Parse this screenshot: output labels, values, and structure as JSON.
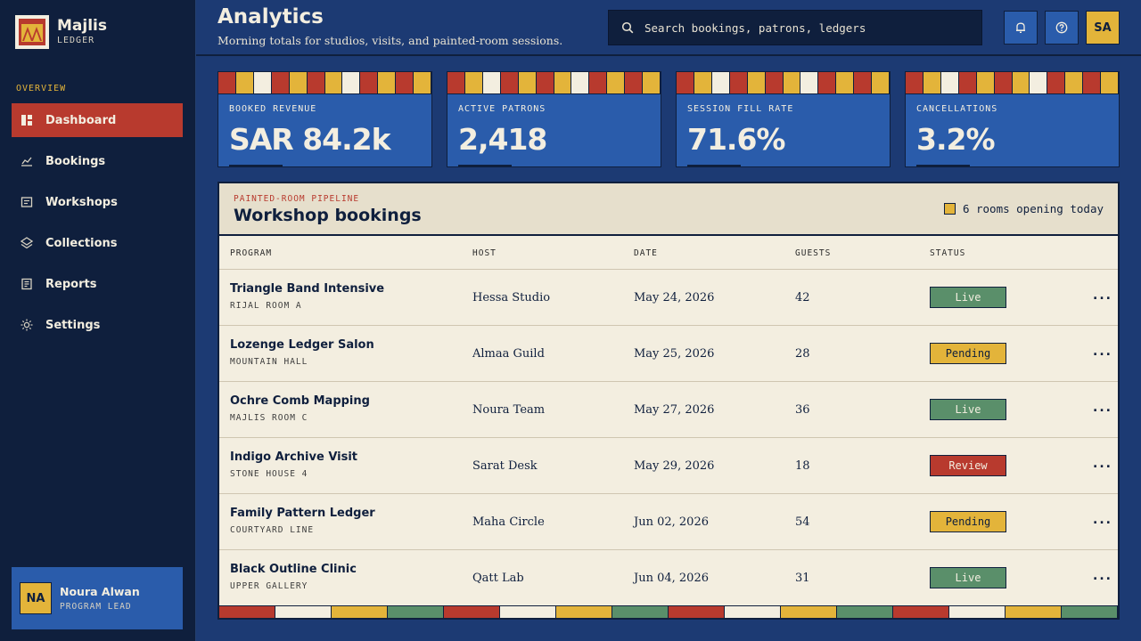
{
  "brand": {
    "name": "Majlis",
    "sub": "LEDGER"
  },
  "sidebar": {
    "section": "OVERVIEW",
    "items": [
      {
        "label": "Dashboard",
        "icon": "dashboard-icon",
        "active": true
      },
      {
        "label": "Bookings",
        "icon": "chart-line-icon",
        "active": false
      },
      {
        "label": "Workshops",
        "icon": "workshop-icon",
        "active": false
      },
      {
        "label": "Collections",
        "icon": "layers-icon",
        "active": false
      },
      {
        "label": "Reports",
        "icon": "report-icon",
        "active": false
      },
      {
        "label": "Settings",
        "icon": "sun-gear-icon",
        "active": false
      }
    ]
  },
  "user": {
    "initials": "NA",
    "name": "Noura Alwan",
    "role": "PROGRAM LEAD"
  },
  "header": {
    "title": "Analytics",
    "subtitle": "Morning totals for studios, visits, and painted-room sessions.",
    "search_placeholder": "Search bookings, patrons, ledgers",
    "avatar_initials": "SA"
  },
  "kpis": [
    {
      "label": "BOOKED REVENUE",
      "value": "SAR 84.2k"
    },
    {
      "label": "ACTIVE PATRONS",
      "value": "2,418"
    },
    {
      "label": "SESSION FILL RATE",
      "value": "71.6%"
    },
    {
      "label": "CANCELLATIONS",
      "value": "3.2%"
    }
  ],
  "panel": {
    "eyebrow": "PAINTED-ROOM PIPELINE",
    "title": "Workshop bookings",
    "legend": "6 rooms opening today",
    "columns": {
      "program": "PROGRAM",
      "host": "HOST",
      "date": "DATE",
      "guests": "GUESTS",
      "status": "STATUS"
    },
    "rows": [
      {
        "program": "Triangle Band Intensive",
        "room": "RIJAL ROOM A",
        "host": "Hessa Studio",
        "date": "May 24, 2026",
        "guests": "42",
        "status": "Live"
      },
      {
        "program": "Lozenge Ledger Salon",
        "room": "MOUNTAIN HALL",
        "host": "Almaa Guild",
        "date": "May 25, 2026",
        "guests": "28",
        "status": "Pending"
      },
      {
        "program": "Ochre Comb Mapping",
        "room": "MAJLIS ROOM C",
        "host": "Noura Team",
        "date": "May 27, 2026",
        "guests": "36",
        "status": "Live"
      },
      {
        "program": "Indigo Archive Visit",
        "room": "STONE HOUSE 4",
        "host": "Sarat Desk",
        "date": "May 29, 2026",
        "guests": "18",
        "status": "Review"
      },
      {
        "program": "Family Pattern Ledger",
        "room": "COURTYARD LINE",
        "host": "Maha Circle",
        "date": "Jun 02, 2026",
        "guests": "54",
        "status": "Pending"
      },
      {
        "program": "Black Outline Clinic",
        "room": "UPPER GALLERY",
        "host": "Qatt Lab",
        "date": "Jun 04, 2026",
        "guests": "31",
        "status": "Live"
      }
    ],
    "more_label": "..."
  },
  "colors": {
    "red": "#b83a2e",
    "gold": "#e3b43a",
    "cream": "#f3eee0",
    "green": "#5a8f6a",
    "navy": "#0f1f3d",
    "blue": "#2a5cab"
  }
}
